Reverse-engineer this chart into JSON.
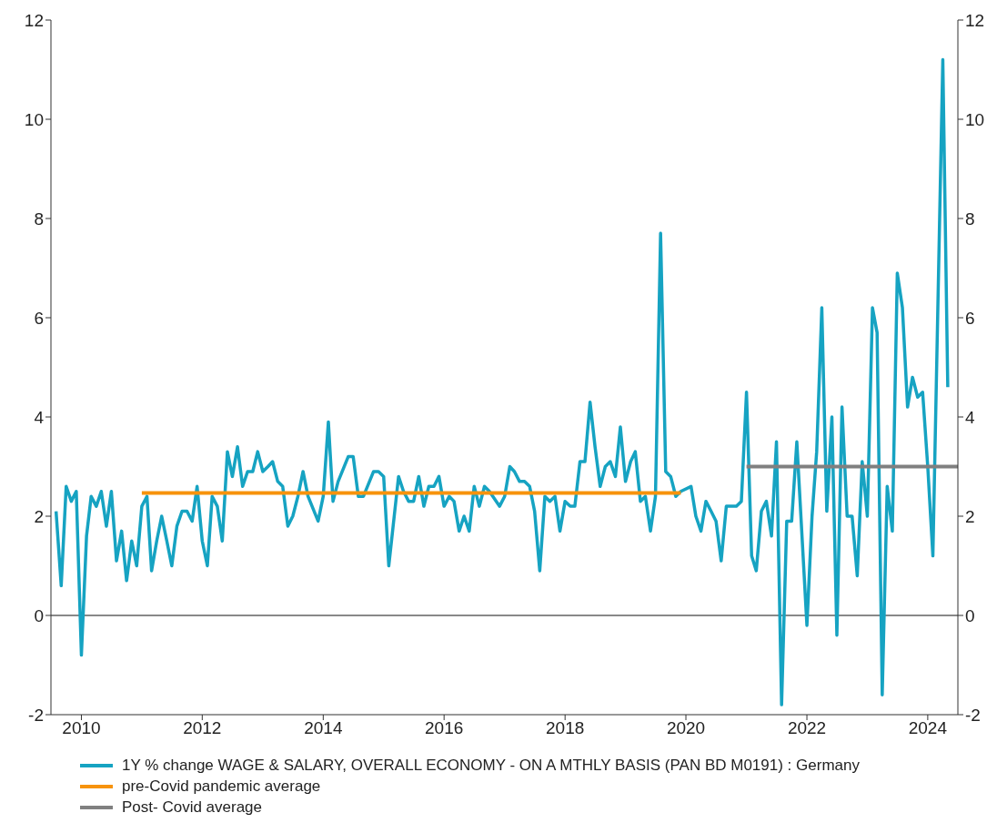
{
  "chart_data": {
    "type": "line",
    "xlim": [
      "2009-07",
      "2024-07"
    ],
    "xticks": [
      "2010",
      "2012",
      "2014",
      "2016",
      "2018",
      "2020",
      "2022",
      "2024"
    ],
    "ylim": [
      -2,
      12
    ],
    "yticks": [
      -2,
      0,
      2,
      4,
      6,
      8,
      10,
      12
    ],
    "y2lim": [
      -2,
      12
    ],
    "y2ticks": [
      -2,
      0,
      2,
      4,
      6,
      8,
      10,
      12
    ],
    "grid": false,
    "legend": "bottom",
    "line_style": "solid",
    "ref_lines": [
      {
        "axis": "y",
        "value": 0,
        "color": "#606060"
      }
    ],
    "series": [
      {
        "name": "1Y % change WAGE & SALARY, OVERALL ECONOMY - ON A MTHLY BASIS (PAN BD M0191) : Germany",
        "color": "#16a3c2",
        "x": [
          "2009-08",
          "2009-09",
          "2009-10",
          "2009-11",
          "2009-12",
          "2010-01",
          "2010-02",
          "2010-03",
          "2010-04",
          "2010-05",
          "2010-06",
          "2010-07",
          "2010-08",
          "2010-09",
          "2010-10",
          "2010-11",
          "2010-12",
          "2011-01",
          "2011-02",
          "2011-03",
          "2011-04",
          "2011-05",
          "2011-06",
          "2011-07",
          "2011-08",
          "2011-09",
          "2011-10",
          "2011-11",
          "2011-12",
          "2012-01",
          "2012-02",
          "2012-03",
          "2012-04",
          "2012-05",
          "2012-06",
          "2012-07",
          "2012-08",
          "2012-09",
          "2012-10",
          "2012-11",
          "2012-12",
          "2013-01",
          "2013-02",
          "2013-03",
          "2013-04",
          "2013-05",
          "2013-06",
          "2013-07",
          "2013-08",
          "2013-09",
          "2013-10",
          "2013-12",
          "2014-01",
          "2014-02",
          "2014-03",
          "2014-04",
          "2014-06",
          "2014-07",
          "2014-08",
          "2014-09",
          "2014-11",
          "2014-12",
          "2015-01",
          "2015-02",
          "2015-04",
          "2015-05",
          "2015-06",
          "2015-07",
          "2015-08",
          "2015-09",
          "2015-10",
          "2015-11",
          "2015-12",
          "2016-01",
          "2016-02",
          "2016-03",
          "2016-04",
          "2016-05",
          "2016-06",
          "2016-07",
          "2016-08",
          "2016-09",
          "2016-10",
          "2016-12",
          "2017-01",
          "2017-02",
          "2017-03",
          "2017-04",
          "2017-05",
          "2017-06",
          "2017-07",
          "2017-08",
          "2017-09",
          "2017-10",
          "2017-11",
          "2017-12",
          "2018-01",
          "2018-02",
          "2018-03",
          "2018-04",
          "2018-05",
          "2018-06",
          "2018-07",
          "2018-08",
          "2018-09",
          "2018-10",
          "2018-11",
          "2018-12",
          "2019-01",
          "2019-02",
          "2019-03",
          "2019-04",
          "2019-05",
          "2019-06",
          "2019-07",
          "2019-08",
          "2019-09",
          "2019-10",
          "2019-11",
          "2019-12",
          "2020-02",
          "2020-03",
          "2020-04",
          "2020-05",
          "2020-06",
          "2020-07",
          "2020-08",
          "2020-09",
          "2020-11",
          "2020-12",
          "2021-01",
          "2021-02",
          "2021-03",
          "2021-04",
          "2021-05",
          "2021-06",
          "2021-07",
          "2021-08",
          "2021-09",
          "2021-10",
          "2021-11",
          "2022-01",
          "2022-02",
          "2022-03",
          "2022-04",
          "2022-05",
          "2022-06",
          "2022-07",
          "2022-08",
          "2022-09",
          "2022-10",
          "2022-11",
          "2022-12",
          "2023-01",
          "2023-02",
          "2023-03",
          "2023-04",
          "2023-05",
          "2023-06",
          "2023-07",
          "2023-08",
          "2023-09",
          "2023-10",
          "2023-11",
          "2023-12",
          "2024-01",
          "2024-02",
          "2024-04",
          "2024-05"
        ],
        "values": [
          2.1,
          0.6,
          2.6,
          2.3,
          2.5,
          -0.8,
          1.6,
          2.4,
          2.2,
          2.5,
          1.8,
          2.5,
          1.1,
          1.7,
          0.7,
          1.5,
          1.0,
          2.2,
          2.4,
          0.9,
          1.5,
          2.0,
          1.5,
          1.0,
          1.8,
          2.1,
          2.1,
          1.9,
          2.6,
          1.5,
          1.0,
          2.4,
          2.2,
          1.5,
          3.3,
          2.8,
          3.4,
          2.6,
          2.9,
          2.9,
          3.3,
          2.9,
          3.0,
          3.1,
          2.7,
          2.6,
          1.8,
          2.0,
          2.4,
          2.9,
          2.4,
          1.9,
          2.4,
          3.9,
          2.3,
          2.7,
          3.2,
          3.2,
          2.4,
          2.4,
          2.9,
          2.9,
          2.8,
          1.0,
          2.8,
          2.5,
          2.3,
          2.3,
          2.8,
          2.2,
          2.6,
          2.6,
          2.8,
          2.2,
          2.4,
          2.3,
          1.7,
          2.0,
          1.7,
          2.6,
          2.2,
          2.6,
          2.5,
          2.2,
          2.4,
          3.0,
          2.9,
          2.7,
          2.7,
          2.6,
          2.1,
          0.9,
          2.4,
          2.3,
          2.4,
          1.7,
          2.3,
          2.2,
          2.2,
          3.1,
          3.1,
          4.3,
          3.4,
          2.6,
          3.0,
          3.1,
          2.8,
          3.8,
          2.7,
          3.1,
          3.3,
          2.3,
          2.4,
          1.7,
          2.4,
          7.7,
          2.9,
          2.8,
          2.4,
          2.5,
          2.6,
          2.0,
          1.7,
          2.3,
          2.1,
          1.9,
          1.1,
          2.2,
          2.2,
          2.3,
          4.5,
          1.2,
          0.9,
          2.1,
          2.3,
          1.6,
          3.5,
          -1.8,
          1.9,
          1.9,
          3.5,
          -0.2,
          2.0,
          3.3,
          6.2,
          2.1,
          4.0,
          -0.4,
          4.2,
          2.0,
          2.0,
          0.8,
          3.1,
          2.0,
          6.2,
          5.7,
          -1.6,
          2.6,
          1.7,
          6.9,
          6.2,
          4.2,
          4.8,
          4.4,
          4.5,
          3.0,
          1.2,
          11.2,
          4.6
        ]
      },
      {
        "name": "pre-Covid pandemic average",
        "color": "#f7930c",
        "x": [
          "2011-01",
          "2019-12"
        ],
        "values": [
          2.47,
          2.47
        ]
      },
      {
        "name": "Post- Covid average",
        "color": "#808080",
        "x": [
          "2021-01",
          "2024-07"
        ],
        "values": [
          3.0,
          3.0
        ]
      }
    ]
  }
}
